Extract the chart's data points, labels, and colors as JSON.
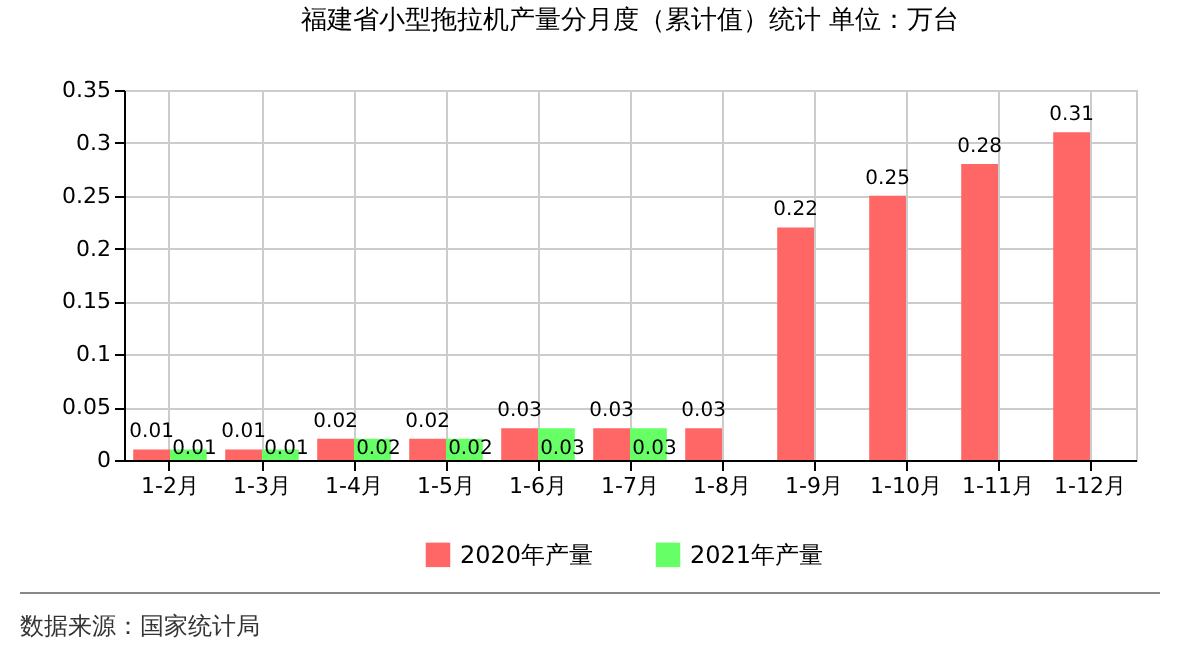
{
  "chart_data": {
    "type": "bar",
    "title": "福建省小型拖拉机产量分月度（累计值）统计 单位：万台",
    "categories": [
      "1-2月",
      "1-3月",
      "1-4月",
      "1-5月",
      "1-6月",
      "1-7月",
      "1-8月",
      "1-9月",
      "1-10月",
      "1-11月",
      "1-12月"
    ],
    "series": [
      {
        "name": "2020年产量",
        "color": "#ff6666",
        "values": [
          0.01,
          0.01,
          0.02,
          0.02,
          0.03,
          0.03,
          0.03,
          0.22,
          0.25,
          0.28,
          0.31
        ]
      },
      {
        "name": "2021年产量",
        "color": "#66ff66",
        "values": [
          0.01,
          0.01,
          0.02,
          0.02,
          0.03,
          0.03,
          null,
          null,
          null,
          null,
          null
        ]
      }
    ],
    "ylim": [
      0,
      0.35
    ],
    "yticks": [
      0,
      0.05,
      0.1,
      0.15,
      0.2,
      0.25,
      0.3,
      0.35
    ],
    "grid": true,
    "legend": "bottom",
    "data_labels": true,
    "annotations": [
      "数据来源：国家统计局"
    ]
  }
}
